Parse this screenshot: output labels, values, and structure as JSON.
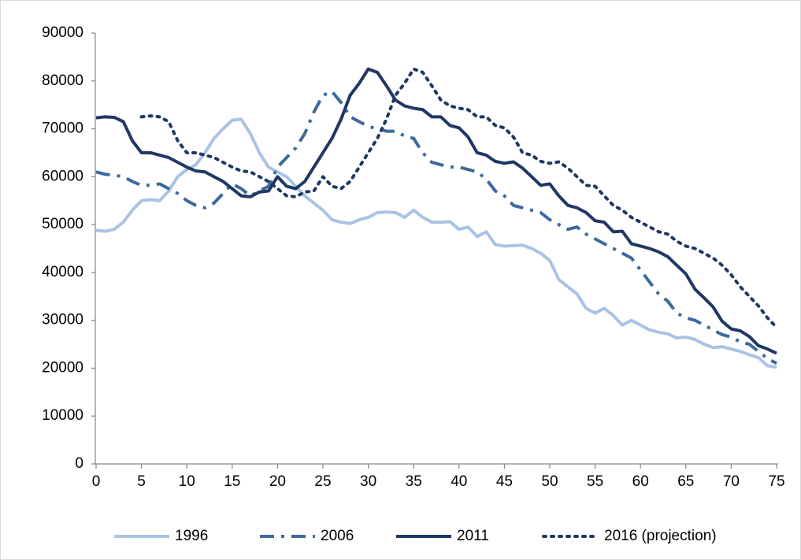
{
  "chart_data": {
    "type": "line",
    "x": [
      0,
      1,
      2,
      3,
      4,
      5,
      6,
      7,
      8,
      9,
      10,
      11,
      12,
      13,
      14,
      15,
      16,
      17,
      18,
      19,
      20,
      21,
      22,
      23,
      24,
      25,
      26,
      27,
      28,
      29,
      30,
      31,
      32,
      33,
      34,
      35,
      36,
      37,
      38,
      39,
      40,
      41,
      42,
      43,
      44,
      45,
      46,
      47,
      48,
      49,
      50,
      51,
      52,
      53,
      54,
      55,
      56,
      57,
      58,
      59,
      60,
      61,
      62,
      63,
      64,
      65,
      66,
      67,
      68,
      69,
      70,
      71,
      72,
      73,
      74,
      75
    ],
    "series": [
      {
        "name": "1996",
        "color": "#a9c3e5",
        "dash": "solid",
        "values": [
          48800,
          48600,
          49000,
          50500,
          53000,
          55000,
          55200,
          55000,
          57000,
          60000,
          61500,
          62500,
          65000,
          68000,
          70000,
          71800,
          72000,
          69000,
          65000,
          62000,
          61000,
          60000,
          58000,
          56000,
          54500,
          53000,
          51000,
          50500,
          50200,
          51000,
          51500,
          52500,
          52600,
          52500,
          51500,
          53000,
          51500,
          50500,
          50500,
          50600,
          49000,
          49500,
          47500,
          48500,
          45800,
          45500,
          45600,
          45700,
          45000,
          44000,
          42500,
          38500,
          37000,
          35500,
          32500,
          31500,
          32500,
          31000,
          29000,
          30000,
          29000,
          28000,
          27500,
          27200,
          26300,
          26500,
          26000,
          25000,
          24300,
          24500,
          24000,
          23500,
          22800,
          22200,
          20500,
          20200
        ]
      },
      {
        "name": "2006",
        "color": "#3d6a9c",
        "dash": "dashdot",
        "values": [
          61000,
          60500,
          60300,
          60000,
          59000,
          58200,
          58200,
          58500,
          57500,
          56500,
          55000,
          54000,
          53500,
          54500,
          56500,
          58500,
          57500,
          56000,
          57000,
          58000,
          62000,
          64000,
          66000,
          69000,
          73500,
          77000,
          77800,
          75500,
          72500,
          71500,
          70500,
          70000,
          69500,
          69500,
          68500,
          68000,
          65000,
          63000,
          62500,
          62000,
          62000,
          61500,
          61000,
          59500,
          57000,
          56000,
          54000,
          53500,
          53000,
          52500,
          51000,
          50000,
          49000,
          49500,
          48000,
          47000,
          46000,
          45000,
          44000,
          43000,
          40500,
          38000,
          35500,
          34000,
          31500,
          30500,
          30000,
          29000,
          28000,
          27000,
          26500,
          25500,
          25000,
          23500,
          22000,
          21000
        ]
      },
      {
        "name": "2011",
        "color": "#1f3864",
        "dash": "solid",
        "values": [
          72300,
          72500,
          72400,
          71500,
          67500,
          65000,
          65000,
          64500,
          64000,
          63000,
          62000,
          61200,
          61000,
          60000,
          59000,
          57500,
          56000,
          55800,
          56800,
          57000,
          60000,
          58000,
          57500,
          59000,
          62000,
          65000,
          68000,
          72000,
          77000,
          79500,
          82500,
          81800,
          79000,
          76000,
          74800,
          74300,
          74000,
          72500,
          72500,
          70700,
          70200,
          68300,
          65000,
          64500,
          63200,
          62800,
          63100,
          61800,
          60000,
          58200,
          58500,
          56000,
          54000,
          53500,
          52500,
          50800,
          50500,
          48500,
          48600,
          46000,
          45500,
          45000,
          44300,
          43300,
          41500,
          39700,
          36500,
          34700,
          32800,
          29800,
          28200,
          27800,
          26600,
          24700,
          24000,
          23100
        ]
      },
      {
        "name": "2016 (projection)",
        "color": "#1f3864",
        "dash": "dot",
        "values": [
          null,
          null,
          null,
          null,
          null,
          72500,
          72700,
          72500,
          71500,
          67500,
          65000,
          65000,
          64500,
          64000,
          63000,
          62000,
          61200,
          61000,
          60000,
          59000,
          57500,
          56000,
          55800,
          56800,
          57000,
          60000,
          58000,
          57500,
          59000,
          62000,
          65000,
          68000,
          72000,
          77000,
          79500,
          82500,
          81800,
          79000,
          76000,
          74800,
          74300,
          74000,
          72500,
          72500,
          70700,
          70200,
          68300,
          65000,
          64500,
          63200,
          62800,
          63100,
          61800,
          60000,
          58200,
          58000,
          56000,
          54000,
          53000,
          51500,
          50500,
          49500,
          48500,
          48000,
          46500,
          45500,
          45000,
          44000,
          43000,
          41500,
          39500,
          37000,
          35000,
          33000,
          30500,
          28500
        ]
      }
    ],
    "xlim": [
      0,
      75
    ],
    "xticks": [
      0,
      5,
      10,
      15,
      20,
      25,
      30,
      35,
      40,
      45,
      50,
      55,
      60,
      65,
      70,
      75
    ],
    "ylim": [
      0,
      90000
    ],
    "yticks": [
      0,
      10000,
      20000,
      30000,
      40000,
      50000,
      60000,
      70000,
      80000,
      90000
    ],
    "grid": false,
    "legend": "bottom"
  }
}
